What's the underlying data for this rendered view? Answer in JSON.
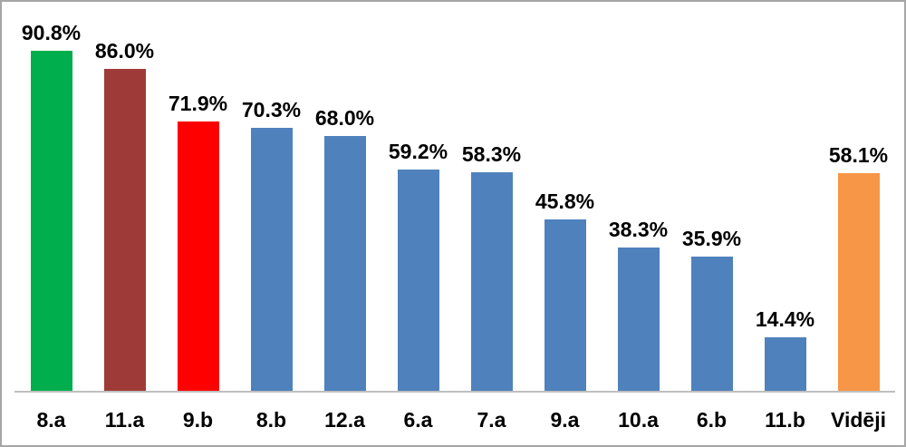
{
  "chart_data": {
    "type": "bar",
    "categories": [
      "8.a",
      "11.a",
      "9.b",
      "8.b",
      "12.a",
      "6.a",
      "7.a",
      "9.a",
      "10.a",
      "6.b",
      "11.b",
      "Vidēji"
    ],
    "values": [
      90.8,
      86.0,
      71.9,
      70.3,
      68.0,
      59.2,
      58.3,
      45.8,
      38.3,
      35.9,
      14.4,
      58.1
    ],
    "value_labels": [
      "90.8%",
      "86.0%",
      "71.9%",
      "70.3%",
      "68.0%",
      "59.2%",
      "58.3%",
      "45.8%",
      "38.3%",
      "35.9%",
      "14.4%",
      "58.1%"
    ],
    "bar_colors": [
      "#00AE4D",
      "#9E3B38",
      "#FF0000",
      "#4F81BD",
      "#4F81BD",
      "#4F81BD",
      "#4F81BD",
      "#4F81BD",
      "#4F81BD",
      "#4F81BD",
      "#4F81BD",
      "#F79646"
    ],
    "title": "",
    "xlabel": "",
    "ylabel": "",
    "ylim": [
      0,
      100
    ],
    "grid": false,
    "legend": "none",
    "data_labels": "outside-end",
    "colors": {
      "frame_border": "#A6A6A6",
      "axis_line": "#BFBFBF",
      "label_text": "#000000",
      "background": "#FFFFFF"
    }
  }
}
